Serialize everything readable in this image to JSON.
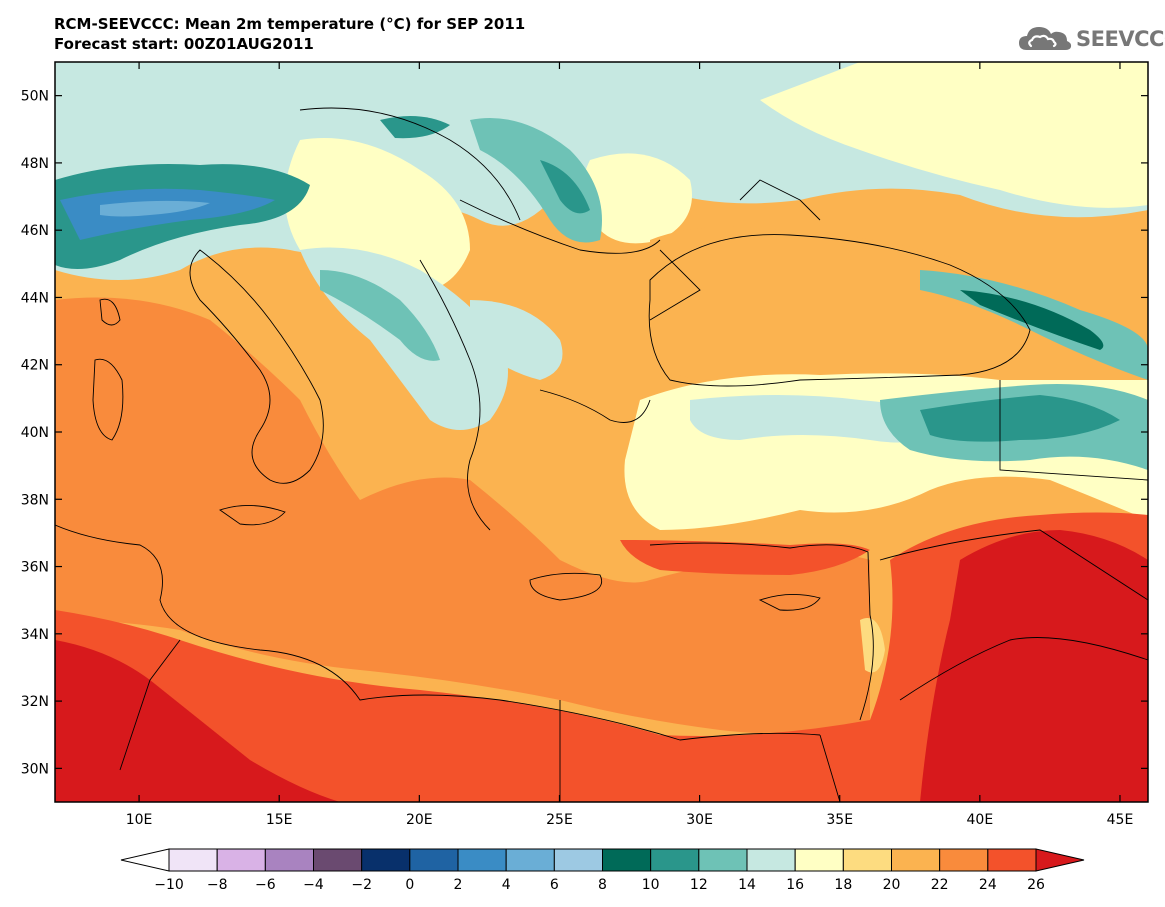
{
  "header": {
    "title_line1": "RCM-SEEVCCC: Mean 2m temperature (°C) for SEP 2011",
    "title_line2": "Forecast start: 00Z01AUG2011"
  },
  "logo": {
    "text": "SEEVCCC",
    "icon": "cloud-icon",
    "color": "#777777"
  },
  "map": {
    "extent": {
      "lon_min": 7,
      "lon_max": 46,
      "lat_min": 29,
      "lat_max": 51
    },
    "lat_labels": [
      "50N",
      "48N",
      "46N",
      "44N",
      "42N",
      "40N",
      "38N",
      "36N",
      "34N",
      "32N",
      "30N"
    ],
    "lat_values": [
      50,
      48,
      46,
      44,
      42,
      40,
      38,
      36,
      34,
      32,
      30
    ],
    "lon_labels": [
      "10E",
      "15E",
      "20E",
      "25E",
      "30E",
      "35E",
      "40E",
      "45E"
    ],
    "lon_values": [
      10,
      15,
      20,
      25,
      30,
      35,
      40,
      45
    ]
  },
  "colorbar": {
    "tick_labels": [
      "-10",
      "-8",
      "-6",
      "-4",
      "-2",
      "0",
      "2",
      "4",
      "6",
      "8",
      "10",
      "12",
      "14",
      "16",
      "18",
      "20",
      "22",
      "24",
      "26"
    ],
    "colors": [
      "#ffffff",
      "#f0e4f7",
      "#d9b2e6",
      "#a983c0",
      "#6a4a70",
      "#08306b",
      "#1f63a3",
      "#3a8cc5",
      "#6aaed6",
      "#9dc9e3",
      "#006a58",
      "#2a968b",
      "#6ec2b6",
      "#c6e8e1",
      "#ffffc4",
      "#fddc80",
      "#fbb350",
      "#f98b3c",
      "#f3522b",
      "#d7191c"
    ]
  }
}
